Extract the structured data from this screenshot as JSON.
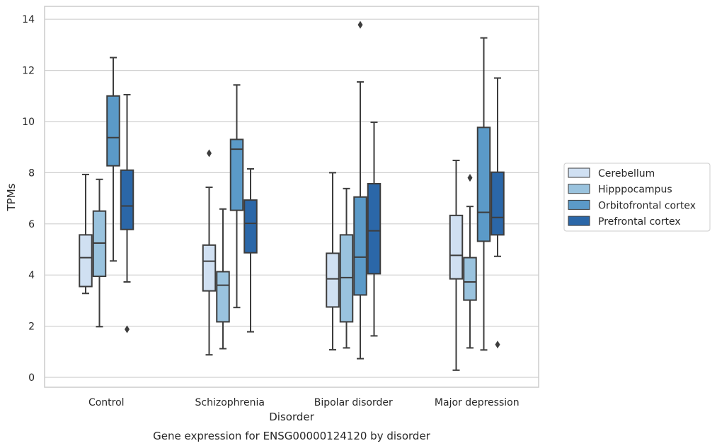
{
  "chart_data": {
    "type": "boxplot",
    "title": "",
    "caption": "Gene expression for ENSG00000124120 by disorder",
    "xlabel": "Disorder",
    "ylabel": "TPMs",
    "ylim": [
      -0.4,
      14.5
    ],
    "yticks": [
      0,
      2,
      4,
      6,
      8,
      10,
      12,
      14
    ],
    "grid": "horizontal",
    "legend_position": "right",
    "categories": [
      "Control",
      "Schizophrenia",
      "Bipolar disorder",
      "Major depression"
    ],
    "series": [
      {
        "name": "Cerebellum",
        "color": "#d0e0f2",
        "boxes": [
          {
            "whislo": 3.28,
            "q1": 3.55,
            "med": 4.68,
            "q3": 5.57,
            "whishi": 7.93,
            "fliers": []
          },
          {
            "whislo": 0.88,
            "q1": 3.38,
            "med": 4.54,
            "q3": 5.17,
            "whishi": 7.43,
            "fliers": [
              8.76
            ]
          },
          {
            "whislo": 1.08,
            "q1": 2.75,
            "med": 3.85,
            "q3": 4.85,
            "whishi": 8.0,
            "fliers": []
          },
          {
            "whislo": 0.28,
            "q1": 3.85,
            "med": 4.77,
            "q3": 6.33,
            "whishi": 8.48,
            "fliers": []
          }
        ]
      },
      {
        "name": "Hipppocampus",
        "color": "#9ac3de",
        "boxes": [
          {
            "whislo": 1.98,
            "q1": 3.95,
            "med": 5.25,
            "q3": 6.5,
            "whishi": 7.74,
            "fliers": []
          },
          {
            "whislo": 1.12,
            "q1": 2.17,
            "med": 3.6,
            "q3": 4.13,
            "whishi": 6.58,
            "fliers": []
          },
          {
            "whislo": 1.15,
            "q1": 2.17,
            "med": 3.9,
            "q3": 5.57,
            "whishi": 7.38,
            "fliers": []
          },
          {
            "whislo": 1.15,
            "q1": 3.02,
            "med": 3.73,
            "q3": 4.68,
            "whishi": 6.68,
            "fliers": [
              7.8
            ]
          }
        ]
      },
      {
        "name": "Orbitofrontal cortex",
        "color": "#5b9ac8",
        "boxes": [
          {
            "whislo": 4.55,
            "q1": 8.27,
            "med": 9.37,
            "q3": 11.0,
            "whishi": 12.5,
            "fliers": []
          },
          {
            "whislo": 2.73,
            "q1": 6.53,
            "med": 8.92,
            "q3": 9.3,
            "whishi": 11.43,
            "fliers": []
          },
          {
            "whislo": 0.73,
            "q1": 3.22,
            "med": 4.7,
            "q3": 7.05,
            "whishi": 11.55,
            "fliers": [
              13.78
            ]
          },
          {
            "whislo": 1.07,
            "q1": 5.32,
            "med": 6.45,
            "q3": 9.77,
            "whishi": 13.27,
            "fliers": []
          }
        ]
      },
      {
        "name": "Prefrontal cortex",
        "color": "#2b67a8",
        "boxes": [
          {
            "whislo": 3.73,
            "q1": 5.78,
            "med": 6.7,
            "q3": 8.1,
            "whishi": 11.05,
            "fliers": [
              1.88
            ]
          },
          {
            "whislo": 1.78,
            "q1": 4.87,
            "med": 6.02,
            "q3": 6.93,
            "whishi": 8.15,
            "fliers": []
          },
          {
            "whislo": 1.62,
            "q1": 4.05,
            "med": 5.73,
            "q3": 7.57,
            "whishi": 9.97,
            "fliers": []
          },
          {
            "whislo": 4.73,
            "q1": 5.57,
            "med": 6.25,
            "q3": 8.02,
            "whishi": 11.7,
            "fliers": [
              1.28
            ]
          }
        ]
      }
    ]
  }
}
